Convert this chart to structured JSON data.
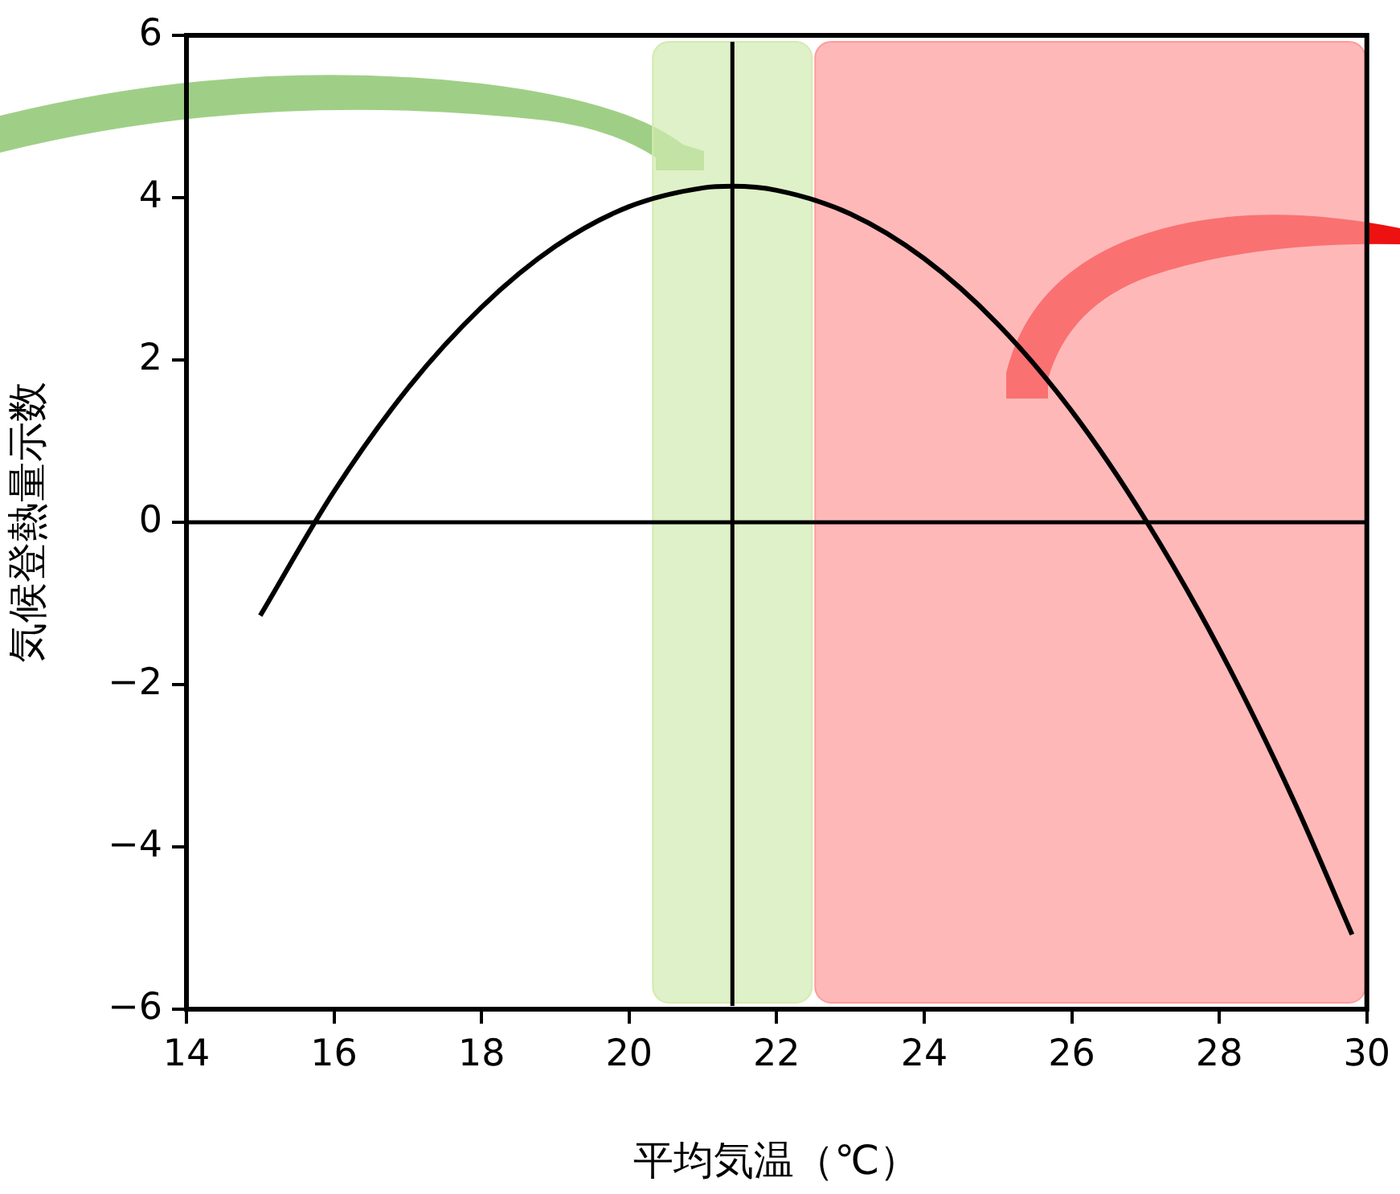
{
  "chart_data": {
    "type": "line",
    "xlabel": "平均気温（℃）",
    "ylabel": "気候登熱量示数",
    "x": [
      15,
      16,
      17,
      18,
      19,
      20,
      21,
      21.4,
      22,
      23,
      24,
      25,
      26,
      27,
      28,
      29,
      29.8
    ],
    "series": [
      {
        "color": "#000000",
        "values": [
          -1.15,
          0.38,
          1.65,
          2.65,
          3.4,
          3.89,
          4.12,
          4.14,
          4.09,
          3.8,
          3.25,
          2.44,
          1.37,
          0.03,
          -1.56,
          -3.41,
          -5.08
        ]
      }
    ],
    "xlim": [
      14,
      30
    ],
    "xticks": [
      14,
      16,
      18,
      20,
      22,
      24,
      26,
      28,
      30
    ],
    "ylim": [
      -6,
      6
    ],
    "yticks": [
      {
        "value": -6,
        "label": "−6"
      },
      {
        "value": -4,
        "label": "−4"
      },
      {
        "value": -2,
        "label": "−2"
      },
      0,
      2,
      4,
      6
    ],
    "bands": [
      {
        "axis": "x",
        "from": 20.3,
        "to": 22.5,
        "color": "#d2ebb0"
      },
      {
        "axis": "x",
        "from": 22.5,
        "to": 30,
        "color": "#ff9a9a"
      }
    ],
    "ref_lines": [
      {
        "axis": "x",
        "value": 21.4,
        "color": "#000000"
      },
      {
        "axis": "y",
        "value": 0,
        "color": "#000000"
      }
    ],
    "grid": false,
    "legend": false,
    "marker": "none",
    "line_style": "solid"
  }
}
